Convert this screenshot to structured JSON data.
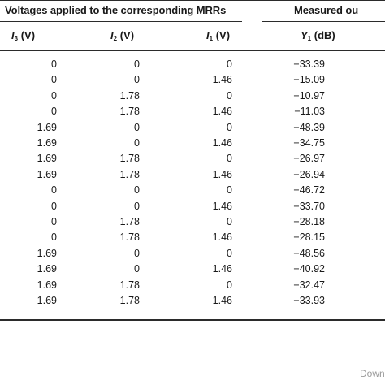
{
  "table": {
    "group_headers": {
      "voltages": "Voltages applied to the corresponding MRRs",
      "measured": "Measured ou"
    },
    "columns": [
      {
        "var": "I",
        "sub": "3",
        "unit": " (V)"
      },
      {
        "var": "I",
        "sub": "2",
        "unit": " (V)"
      },
      {
        "var": "I",
        "sub": "1",
        "unit": " (V)"
      },
      {
        "var": "Y",
        "sub": "1",
        "unit": " (dB)"
      }
    ],
    "rows": [
      [
        "0",
        "0",
        "0",
        "−33.39"
      ],
      [
        "0",
        "0",
        "1.46",
        "−15.09"
      ],
      [
        "0",
        "1.78",
        "0",
        "−10.97"
      ],
      [
        "0",
        "1.78",
        "1.46",
        "−11.03"
      ],
      [
        "1.69",
        "0",
        "0",
        "−48.39"
      ],
      [
        "1.69",
        "0",
        "1.46",
        "−34.75"
      ],
      [
        "1.69",
        "1.78",
        "0",
        "−26.97"
      ],
      [
        "1.69",
        "1.78",
        "1.46",
        "−26.94"
      ],
      [
        "0",
        "0",
        "0",
        "−46.72"
      ],
      [
        "0",
        "0",
        "1.46",
        "−33.70"
      ],
      [
        "0",
        "1.78",
        "0",
        "−28.18"
      ],
      [
        "0",
        "1.78",
        "1.46",
        "−28.15"
      ],
      [
        "1.69",
        "0",
        "0",
        "−48.56"
      ],
      [
        "1.69",
        "0",
        "1.46",
        "−40.92"
      ],
      [
        "1.69",
        "1.78",
        "0",
        "−32.47"
      ],
      [
        "1.69",
        "1.78",
        "1.46",
        "−33.93"
      ]
    ]
  },
  "watermark": "Down"
}
